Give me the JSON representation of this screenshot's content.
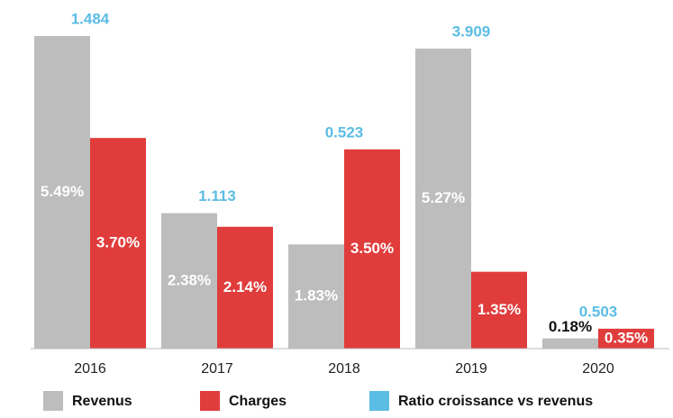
{
  "chart_data": {
    "type": "bar",
    "categories": [
      "2016",
      "2017",
      "2018",
      "2019",
      "2020"
    ],
    "series": [
      {
        "name": "Revenus",
        "color": "#bdbdbd",
        "values": [
          5.49,
          2.38,
          1.83,
          5.27,
          0.18
        ],
        "value_labels": [
          "5.49%",
          "2.38%",
          "1.83%",
          "5.27%",
          "0.18%"
        ]
      },
      {
        "name": "Charges",
        "color": "#e03c3c",
        "values": [
          3.7,
          2.14,
          3.5,
          1.35,
          0.35
        ],
        "value_labels": [
          "3.70%",
          "2.14%",
          "3.50%",
          "1.35%",
          "0.35%"
        ]
      },
      {
        "name": "Ratio croissance vs revenus",
        "color": "#5bbde4",
        "values": [
          1.484,
          1.113,
          0.523,
          3.909,
          0.503
        ]
      }
    ]
  }
}
